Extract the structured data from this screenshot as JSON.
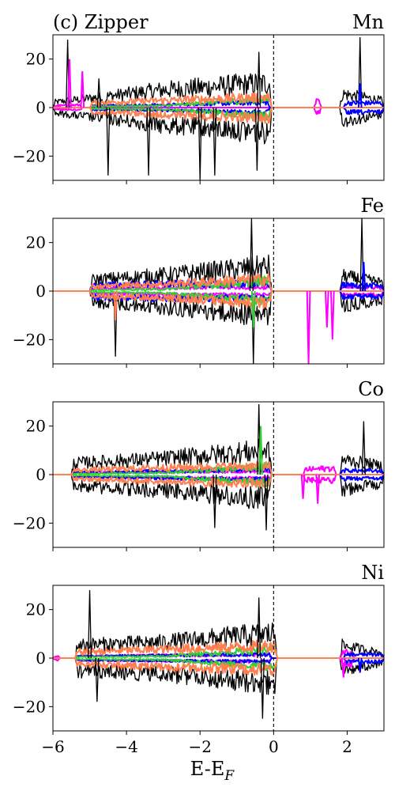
{
  "chart_data": [
    {
      "type": "line",
      "title": "(c) Zipper",
      "panel_label": "Mn",
      "xlim": [
        -6,
        3
      ],
      "ylim": [
        -30,
        30
      ],
      "xticks": [
        -6,
        -4,
        -2,
        0,
        2
      ],
      "yticks": [
        -20,
        0,
        20
      ],
      "fermi_line_x": 0,
      "series": [
        {
          "color": "#000000",
          "segments": [
            [
              -6.0,
              -4.6
            ],
            [
              -4.6,
              -0.05
            ],
            [
              1.8,
              3.0
            ]
          ],
          "envelope": [
            3.0,
            10.0,
            14.0,
            4.0
          ]
        },
        {
          "color": "#ff00ff",
          "segments": [
            [
              -6.0,
              -5.2
            ],
            [
              1.1,
              1.3
            ]
          ],
          "envelope": [
            1.0,
            3.0,
            5.0,
            1.0
          ]
        },
        {
          "color": "#0000ff",
          "segments": [
            [
              -5.0,
              -0.1
            ],
            [
              1.9,
              3.0
            ]
          ],
          "envelope": [
            1.0,
            1.5,
            3.0,
            2.5
          ]
        },
        {
          "color": "#32cd32",
          "segments": [
            [
              -5.0,
              -0.05
            ]
          ],
          "envelope": [
            0.5,
            1.0,
            5.0,
            0.3
          ]
        },
        {
          "color": "#ff7f50",
          "segments": [
            [
              -5.0,
              -0.05
            ]
          ],
          "envelope": [
            2.0,
            4.0,
            6.0,
            0.3
          ]
        }
      ],
      "spikes": [
        {
          "x": -5.6,
          "y": 28,
          "color": "#000000"
        },
        {
          "x": -5.55,
          "y": 20,
          "color": "#ff00ff"
        },
        {
          "x": -5.2,
          "y": 15,
          "color": "#ff00ff"
        },
        {
          "x": -4.75,
          "y": 12,
          "color": "#000000"
        },
        {
          "x": -4.5,
          "y": -28,
          "color": "#000000"
        },
        {
          "x": -3.4,
          "y": -28,
          "color": "#000000"
        },
        {
          "x": -2.0,
          "y": -30,
          "color": "#000000"
        },
        {
          "x": -1.6,
          "y": -28,
          "color": "#000000"
        },
        {
          "x": -0.4,
          "y": 23,
          "color": "#000000"
        },
        {
          "x": -0.45,
          "y": -26,
          "color": "#000000"
        },
        {
          "x": 2.35,
          "y": 29,
          "color": "#000000"
        },
        {
          "x": 2.35,
          "y": 10,
          "color": "#0000ff"
        }
      ]
    },
    {
      "type": "line",
      "panel_label": "Fe",
      "xlim": [
        -6,
        3
      ],
      "ylim": [
        -30,
        30
      ],
      "xticks": [
        -6,
        -4,
        -2,
        0,
        2
      ],
      "yticks": [
        -20,
        0,
        20
      ],
      "fermi_line_x": 0,
      "series": [
        {
          "color": "#000000",
          "segments": [
            [
              -5.0,
              -0.05
            ],
            [
              1.8,
              3.0
            ]
          ],
          "envelope": [
            5.0,
            9.0,
            14.0,
            5.0
          ]
        },
        {
          "color": "#ff00ff",
          "segments": [
            [
              -5.0,
              -0.05
            ],
            [
              1.8,
              3.0
            ]
          ],
          "envelope": [
            1.0,
            2.0,
            2.0,
            2.0
          ]
        },
        {
          "color": "#0000ff",
          "segments": [
            [
              -5.0,
              -0.05
            ],
            [
              1.8,
              3.0
            ]
          ],
          "envelope": [
            3.0,
            4.0,
            4.0,
            3.0
          ]
        },
        {
          "color": "#32cd32",
          "segments": [
            [
              -5.0,
              -0.05
            ]
          ],
          "envelope": [
            0.5,
            1.0,
            6.0,
            0.3
          ]
        },
        {
          "color": "#ff7f50",
          "segments": [
            [
              -5.0,
              -0.05
            ]
          ],
          "envelope": [
            2.0,
            4.0,
            7.0,
            0.5
          ]
        }
      ],
      "spikes": [
        {
          "x": -4.3,
          "y": -27,
          "color": "#000000"
        },
        {
          "x": -4.3,
          "y": -12,
          "color": "#ff7f50"
        },
        {
          "x": -0.6,
          "y": 30,
          "color": "#000000"
        },
        {
          "x": -0.55,
          "y": -30,
          "color": "#000000"
        },
        {
          "x": -0.55,
          "y": -15,
          "color": "#32cd32"
        },
        {
          "x": 0.95,
          "y": -30,
          "color": "#ff00ff"
        },
        {
          "x": 1.45,
          "y": -15,
          "color": "#ff00ff"
        },
        {
          "x": 1.6,
          "y": -20,
          "color": "#ff00ff"
        },
        {
          "x": 2.4,
          "y": 30,
          "color": "#000000"
        },
        {
          "x": 2.45,
          "y": 12,
          "color": "#0000ff"
        }
      ]
    },
    {
      "type": "line",
      "panel_label": "Co",
      "xlim": [
        -6,
        3
      ],
      "ylim": [
        -30,
        30
      ],
      "xticks": [
        -6,
        -4,
        -2,
        0,
        2
      ],
      "yticks": [
        -20,
        0,
        20
      ],
      "fermi_line_x": 0,
      "series": [
        {
          "color": "#000000",
          "segments": [
            [
              -5.5,
              -0.05
            ],
            [
              1.8,
              3.0
            ]
          ],
          "envelope": [
            6.0,
            9.0,
            14.0,
            5.0
          ]
        },
        {
          "color": "#ff00ff",
          "segments": [
            [
              -5.5,
              -0.05
            ],
            [
              0.8,
              1.7
            ]
          ],
          "envelope": [
            1.0,
            1.5,
            2.0,
            5.0
          ]
        },
        {
          "color": "#0000ff",
          "segments": [
            [
              -5.5,
              -0.05
            ],
            [
              1.8,
              3.0
            ]
          ],
          "envelope": [
            1.0,
            2.0,
            3.0,
            2.0
          ]
        },
        {
          "color": "#32cd32",
          "segments": [
            [
              -5.5,
              -0.05
            ]
          ],
          "envelope": [
            0.5,
            1.0,
            5.0,
            0.3
          ]
        },
        {
          "color": "#ff7f50",
          "segments": [
            [
              -5.5,
              -0.05
            ]
          ],
          "envelope": [
            2.0,
            4.0,
            5.0,
            0.5
          ]
        }
      ],
      "spikes": [
        {
          "x": -1.6,
          "y": -22,
          "color": "#000000"
        },
        {
          "x": -0.4,
          "y": 29,
          "color": "#000000"
        },
        {
          "x": -0.35,
          "y": 20,
          "color": "#32cd32"
        },
        {
          "x": -0.2,
          "y": -23,
          "color": "#000000"
        },
        {
          "x": 0.8,
          "y": -10,
          "color": "#ff00ff"
        },
        {
          "x": 1.2,
          "y": -12,
          "color": "#ff00ff"
        },
        {
          "x": 2.45,
          "y": 22,
          "color": "#000000"
        }
      ]
    },
    {
      "type": "line",
      "panel_label": "Ni",
      "xlabel": "E-E_F",
      "xlim": [
        -6,
        3
      ],
      "ylim": [
        -30,
        30
      ],
      "xticks": [
        -6,
        -4,
        -2,
        0,
        2
      ],
      "yticks": [
        -20,
        0,
        20
      ],
      "fermi_line_x": 0,
      "series": [
        {
          "color": "#000000",
          "segments": [
            [
              -5.4,
              0.1
            ],
            [
              1.8,
              3.0
            ]
          ],
          "envelope": [
            7.0,
            9.0,
            14.0,
            3.0
          ]
        },
        {
          "color": "#ff00ff",
          "segments": [
            [
              -6.0,
              -5.8
            ],
            [
              -5.4,
              -0.05
            ],
            [
              1.8,
              2.2
            ]
          ],
          "envelope": [
            1.0,
            1.5,
            2.0,
            4.0
          ]
        },
        {
          "color": "#0000ff",
          "segments": [
            [
              -5.4,
              -0.05
            ],
            [
              1.9,
              3.0
            ]
          ],
          "envelope": [
            1.0,
            1.5,
            2.0,
            2.0
          ]
        },
        {
          "color": "#32cd32",
          "segments": [
            [
              -5.4,
              0.1
            ]
          ],
          "envelope": [
            0.5,
            1.0,
            5.0,
            0.3
          ]
        },
        {
          "color": "#ff7f50",
          "segments": [
            [
              -5.4,
              0.1
            ]
          ],
          "envelope": [
            3.0,
            5.0,
            7.0,
            0.5
          ]
        }
      ],
      "spikes": [
        {
          "x": -5.0,
          "y": 28,
          "color": "#000000"
        },
        {
          "x": -4.8,
          "y": -18,
          "color": "#000000"
        },
        {
          "x": -0.4,
          "y": 25,
          "color": "#000000"
        },
        {
          "x": -0.3,
          "y": -25,
          "color": "#000000"
        },
        {
          "x": 1.9,
          "y": -8,
          "color": "#ff00ff"
        },
        {
          "x": 2.35,
          "y": -6,
          "color": "#0000ff"
        }
      ]
    }
  ]
}
